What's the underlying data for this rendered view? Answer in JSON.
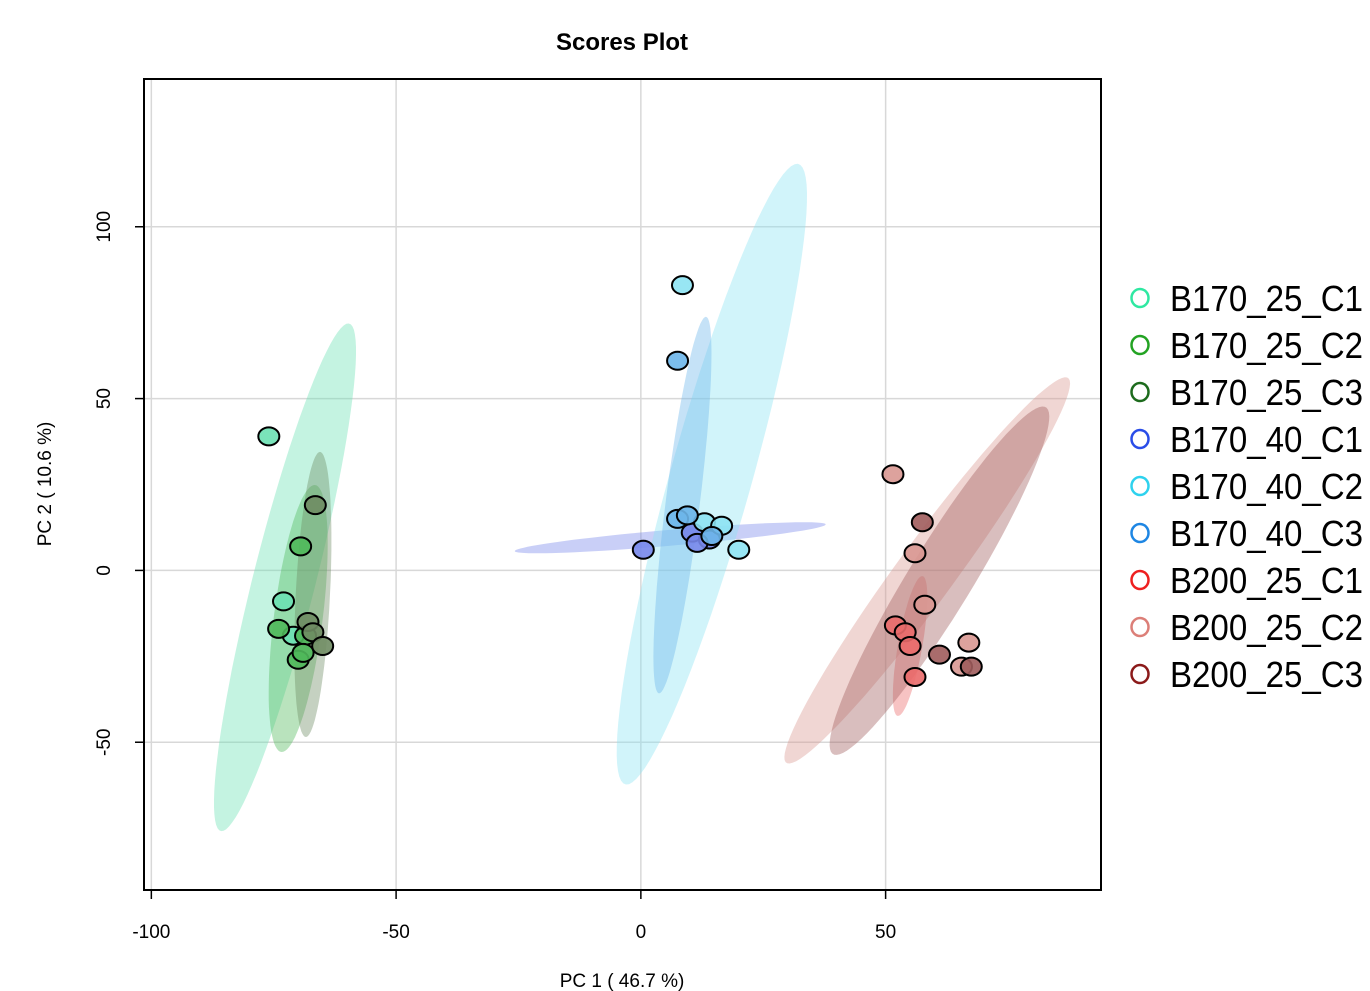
{
  "chart_data": {
    "type": "scatter",
    "title": "Scores Plot",
    "xlabel": "PC 1 ( 46.7 %)",
    "ylabel": "PC 2 ( 10.6 %)",
    "xlim": [
      -101.5,
      94
    ],
    "ylim": [
      -93,
      143
    ],
    "x_ticks": [
      -100,
      -50,
      0,
      50
    ],
    "y_ticks": [
      100,
      50,
      0,
      -50
    ],
    "grid": true,
    "legend_position": "right",
    "series": [
      {
        "name": "B170_25_C1",
        "color": "#2fe8a2",
        "fill": "#6be0b3",
        "ellipse": {
          "cx": -72.7,
          "cy": -2,
          "rx": 75,
          "ry": 6.5,
          "angle_deg": 80
        },
        "points": [
          [
            -76,
            39
          ],
          [
            -73,
            -9
          ],
          [
            -71,
            -19
          ]
        ]
      },
      {
        "name": "B170_25_C2",
        "color": "#23a323",
        "fill": "#4fb85a",
        "ellipse": {
          "cx": -70,
          "cy": -14,
          "rx": 39,
          "ry": 5,
          "angle_deg": 85
        },
        "points": [
          [
            -69.5,
            7
          ],
          [
            -74,
            -17
          ],
          [
            -68.5,
            -19
          ],
          [
            -70,
            -26
          ],
          [
            -69,
            -24
          ]
        ]
      },
      {
        "name": "B170_25_C3",
        "color": "#1d6b1d",
        "fill": "#6f8c63",
        "ellipse": {
          "cx": -67,
          "cy": -7,
          "rx": 41.5,
          "ry": 3.5,
          "angle_deg": 88
        },
        "points": [
          [
            -66.5,
            19
          ],
          [
            -68,
            -15
          ],
          [
            -67,
            -18
          ],
          [
            -65,
            -22
          ]
        ]
      },
      {
        "name": "B170_40_C1",
        "color": "#2a4de8",
        "fill": "#7787ea",
        "ellipse": {
          "cx": 6,
          "cy": 9.5,
          "rx": 32,
          "ry": 2.3,
          "angle_deg": 7
        },
        "points": [
          [
            0.5,
            6
          ],
          [
            10.5,
            11
          ],
          [
            14,
            9
          ],
          [
            11.5,
            8
          ]
        ]
      },
      {
        "name": "B170_40_C2",
        "color": "#2ed2ee",
        "fill": "#8de3f3",
        "ellipse": {
          "cx": 14.5,
          "cy": 28,
          "rx": 92,
          "ry": 8.5,
          "angle_deg": 79
        },
        "points": [
          [
            8.5,
            83
          ],
          [
            13,
            14
          ],
          [
            16.5,
            13
          ],
          [
            20,
            6
          ]
        ]
      },
      {
        "name": "B170_40_C3",
        "color": "#1e86e3",
        "fill": "#6db6ea",
        "ellipse": {
          "cx": 8.5,
          "cy": 19,
          "rx": 55,
          "ry": 3.5,
          "angle_deg": 85
        },
        "points": [
          [
            7.5,
            61
          ],
          [
            7.5,
            15
          ],
          [
            9.5,
            16
          ],
          [
            14.5,
            10
          ]
        ]
      },
      {
        "name": "B200_25_C1",
        "color": "#ee2020",
        "fill": "#ea6a6a",
        "ellipse": {
          "cx": 55,
          "cy": -22,
          "rx": 20.5,
          "ry": 2.5,
          "angle_deg": 83
        },
        "points": [
          [
            52,
            -16
          ],
          [
            54,
            -18
          ],
          [
            55,
            -22
          ],
          [
            56,
            -31
          ]
        ]
      },
      {
        "name": "B200_25_C2",
        "color": "#dc7f78",
        "fill": "#d99892",
        "ellipse": {
          "cx": 58.5,
          "cy": 0,
          "rx": 63,
          "ry": 6.5,
          "angle_deg": 63
        },
        "points": [
          [
            51.5,
            28
          ],
          [
            56,
            5
          ],
          [
            58,
            -10
          ],
          [
            67,
            -21
          ],
          [
            65.5,
            -28
          ]
        ]
      },
      {
        "name": "B200_25_C3",
        "color": "#8b1a1a",
        "fill": "#a05c5c",
        "ellipse": {
          "cx": 61,
          "cy": -3,
          "rx": 55,
          "ry": 7,
          "angle_deg": 67
        },
        "points": [
          [
            57.5,
            14
          ],
          [
            61,
            -24.5
          ],
          [
            67.5,
            -28
          ]
        ]
      }
    ]
  }
}
